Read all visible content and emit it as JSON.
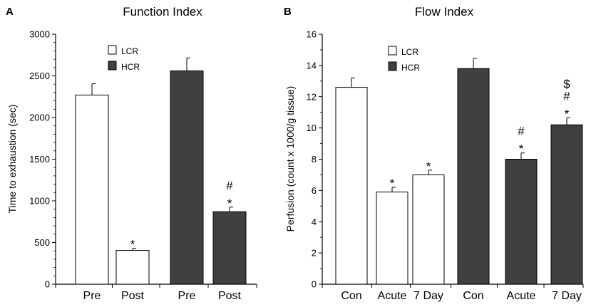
{
  "chart_data": [
    {
      "panel": "A",
      "type": "bar",
      "title": "Function Index",
      "xlabel": "",
      "ylabel": "Time to exhaustion (sec)",
      "ylim": [
        0,
        3000
      ],
      "yticks": [
        0,
        500,
        1000,
        1500,
        2000,
        2500,
        3000
      ],
      "grid": false,
      "legend": {
        "position": "top-center",
        "entries": [
          {
            "label": "LCR",
            "color": "#ffffff"
          },
          {
            "label": "HCR",
            "color": "#404040"
          }
        ]
      },
      "bars": [
        {
          "category": "Pre",
          "group": "LCR",
          "value": 2270,
          "error": 135,
          "annotation": []
        },
        {
          "category": "Post",
          "group": "LCR",
          "value": 405,
          "error": 25,
          "annotation": [
            "*"
          ]
        },
        {
          "category": "Pre",
          "group": "HCR",
          "value": 2560,
          "error": 155,
          "annotation": []
        },
        {
          "category": "Post",
          "group": "HCR",
          "value": 870,
          "error": 55,
          "annotation": [
            "#",
            "*"
          ]
        }
      ]
    },
    {
      "panel": "B",
      "type": "bar",
      "title": "Flow Index",
      "xlabel": "",
      "ylabel": "Perfusion (count x 1000/g tissue)",
      "ylim": [
        0,
        16
      ],
      "yticks": [
        0,
        2,
        4,
        6,
        8,
        10,
        12,
        14,
        16
      ],
      "grid": false,
      "legend": {
        "position": "top-left",
        "entries": [
          {
            "label": "LCR",
            "color": "#ffffff"
          },
          {
            "label": "HCR",
            "color": "#404040"
          }
        ]
      },
      "bars": [
        {
          "category": "Con",
          "group": "LCR",
          "value": 12.6,
          "error": 0.6,
          "annotation": []
        },
        {
          "category": "Acute",
          "group": "LCR",
          "value": 5.9,
          "error": 0.3,
          "annotation": [
            "*"
          ]
        },
        {
          "category": "7 Day",
          "group": "LCR",
          "value": 7.0,
          "error": 0.3,
          "annotation": [
            "*"
          ]
        },
        {
          "category": "Con",
          "group": "HCR",
          "value": 13.8,
          "error": 0.65,
          "annotation": []
        },
        {
          "category": "Acute",
          "group": "HCR",
          "value": 8.0,
          "error": 0.4,
          "annotation": [
            "#",
            "*"
          ]
        },
        {
          "category": "7 Day",
          "group": "HCR",
          "value": 10.2,
          "error": 0.45,
          "annotation": [
            "$",
            "#",
            "*"
          ]
        }
      ]
    }
  ]
}
